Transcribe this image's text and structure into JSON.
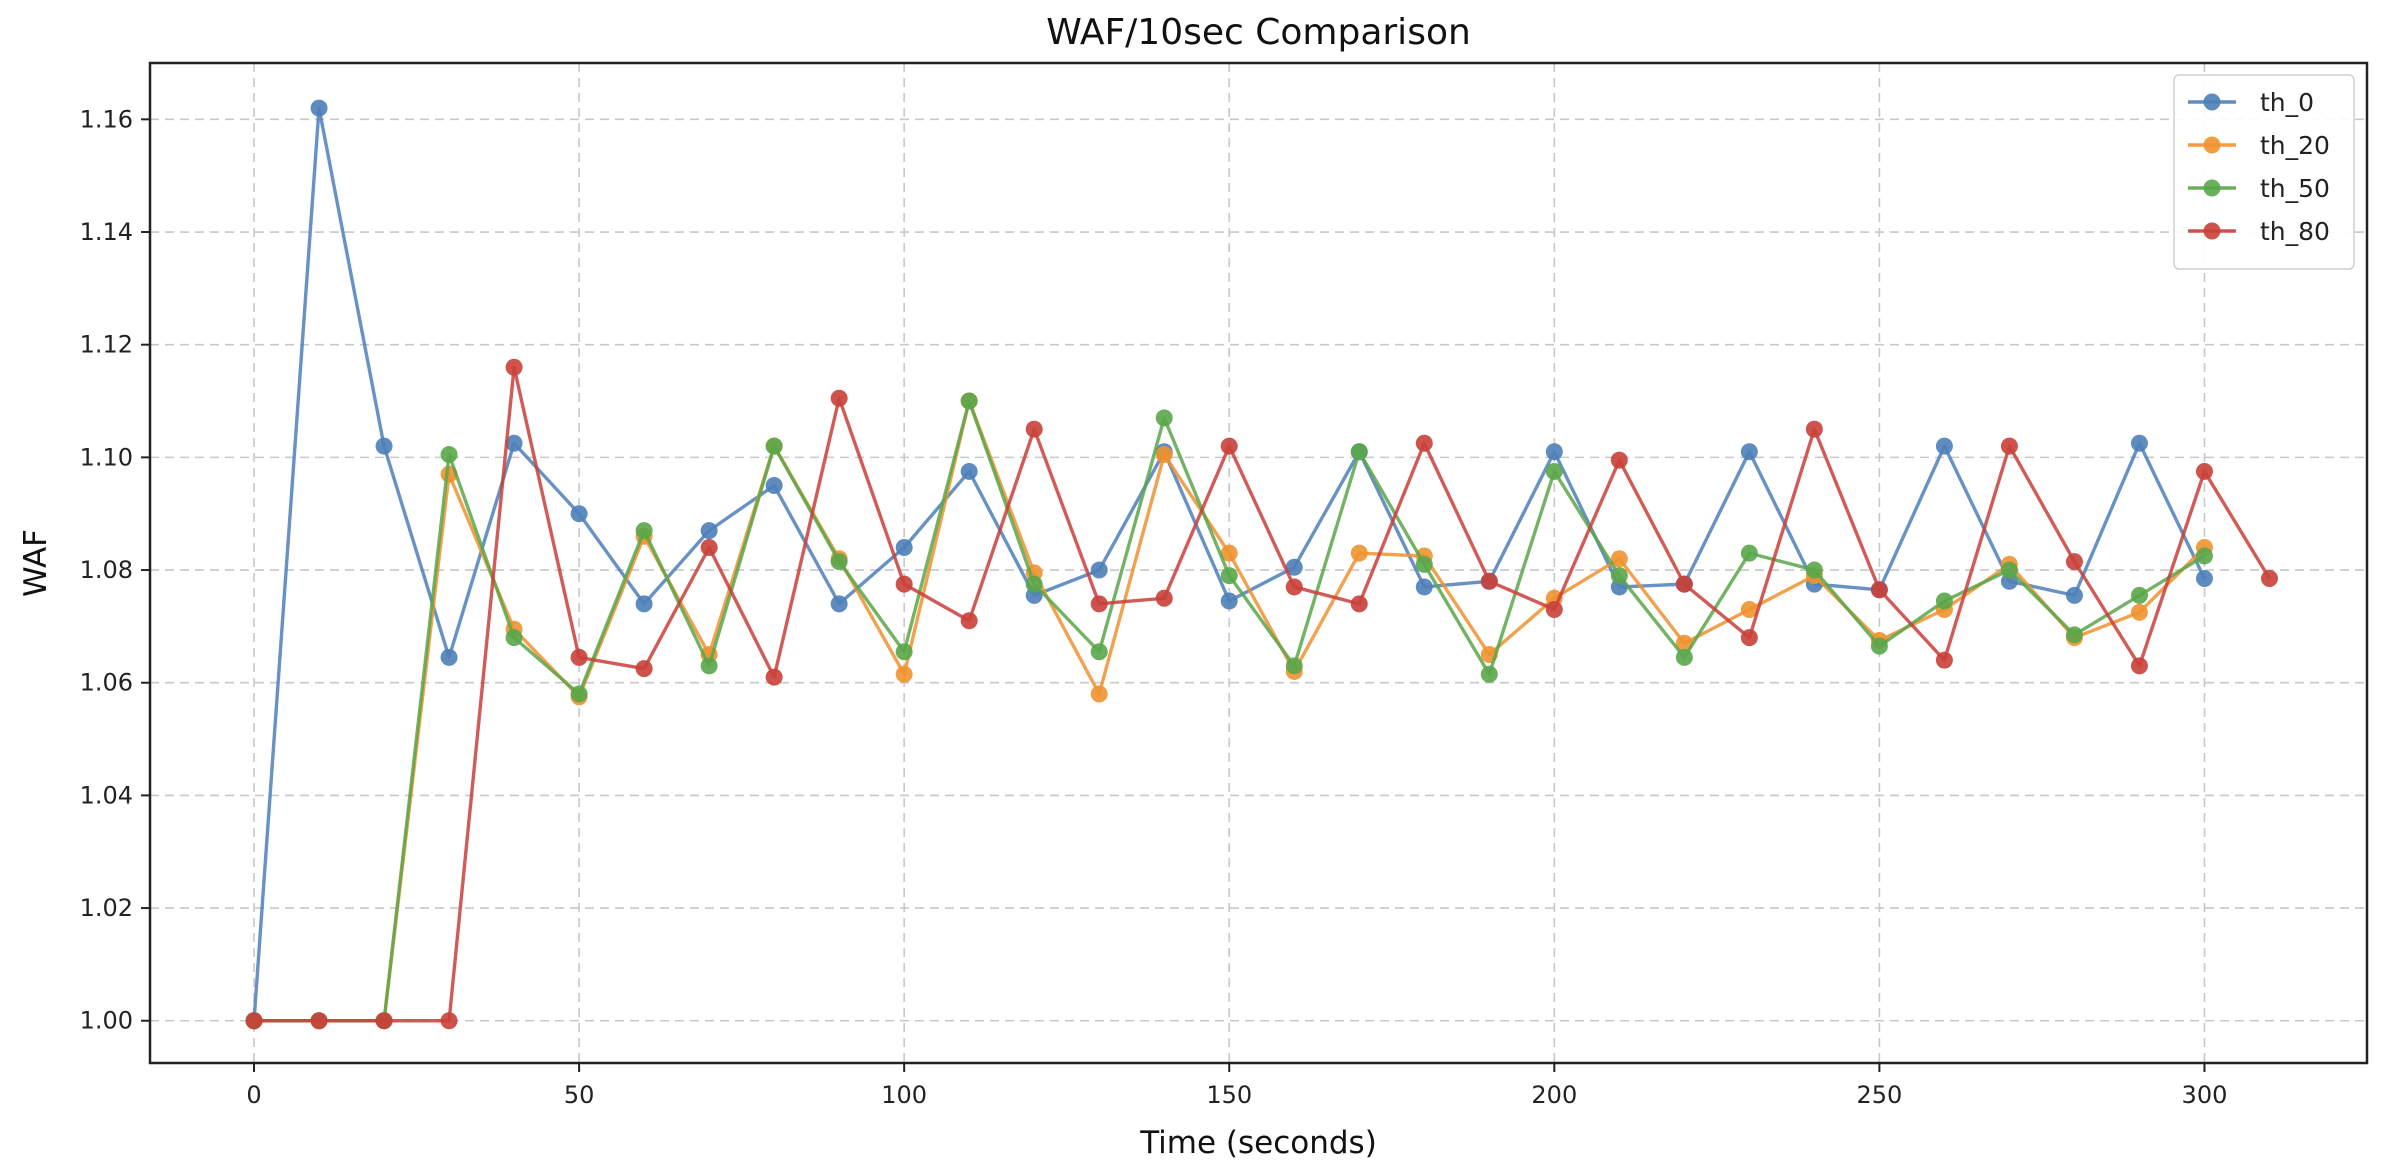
{
  "chart_data": {
    "type": "line",
    "title": "WAF/10sec Comparison",
    "xlabel": "Time (seconds)",
    "ylabel": "WAF",
    "xlim": [
      -16,
      325
    ],
    "ylim": [
      0.9925,
      1.17
    ],
    "xticks": [
      0,
      50,
      100,
      150,
      200,
      250,
      300
    ],
    "yticks": [
      1.0,
      1.02,
      1.04,
      1.06,
      1.08,
      1.1,
      1.12,
      1.14,
      1.16
    ],
    "grid": true,
    "legend_position": "top-right",
    "series": [
      {
        "name": "th_0",
        "color": "#4e7fb8",
        "x": [
          0,
          10,
          20,
          30,
          40,
          50,
          60,
          70,
          80,
          90,
          100,
          110,
          120,
          130,
          140,
          150,
          160,
          170,
          180,
          190,
          200,
          210,
          220,
          230,
          240,
          250,
          260,
          270,
          280,
          290,
          300
        ],
        "values": [
          1.0,
          1.162,
          1.102,
          1.0645,
          1.1025,
          1.09,
          1.074,
          1.087,
          1.095,
          1.074,
          1.084,
          1.0975,
          1.0755,
          1.08,
          1.101,
          1.0745,
          1.0805,
          1.101,
          1.077,
          1.078,
          1.101,
          1.077,
          1.0775,
          1.101,
          1.0775,
          1.0765,
          1.102,
          1.078,
          1.0755,
          1.1025,
          1.0785
        ]
      },
      {
        "name": "th_20",
        "color": "#f0922f",
        "x": [
          0,
          10,
          20,
          30,
          40,
          50,
          60,
          70,
          80,
          90,
          100,
          110,
          120,
          130,
          140,
          150,
          160,
          170,
          180,
          190,
          200,
          210,
          220,
          230,
          240,
          250,
          260,
          270,
          280,
          290,
          300
        ],
        "values": [
          1.0,
          1.0,
          1.0,
          1.097,
          1.0695,
          1.0575,
          1.086,
          1.065,
          1.102,
          1.082,
          1.0615,
          1.11,
          1.0795,
          1.058,
          1.1005,
          1.083,
          1.062,
          1.083,
          1.0825,
          1.065,
          1.075,
          1.082,
          1.067,
          1.073,
          1.079,
          1.0675,
          1.073,
          1.081,
          1.068,
          1.0725,
          1.084
        ]
      },
      {
        "name": "th_50",
        "color": "#5aa64a",
        "x": [
          0,
          10,
          20,
          30,
          40,
          50,
          60,
          70,
          80,
          90,
          100,
          110,
          120,
          130,
          140,
          150,
          160,
          170,
          180,
          190,
          200,
          210,
          220,
          230,
          240,
          250,
          260,
          270,
          280,
          290,
          300
        ],
        "values": [
          1.0,
          1.0,
          1.0,
          1.1005,
          1.068,
          1.058,
          1.087,
          1.063,
          1.102,
          1.0815,
          1.0655,
          1.11,
          1.0775,
          1.0655,
          1.107,
          1.079,
          1.063,
          1.101,
          1.081,
          1.0615,
          1.0975,
          1.079,
          1.0645,
          1.083,
          1.08,
          1.0665,
          1.0745,
          1.08,
          1.0685,
          1.0755,
          1.0825
        ]
      },
      {
        "name": "th_80",
        "color": "#c9403a",
        "x": [
          0,
          10,
          20,
          30,
          40,
          50,
          60,
          70,
          80,
          90,
          100,
          110,
          120,
          130,
          140,
          150,
          160,
          170,
          180,
          190,
          200,
          210,
          220,
          230,
          240,
          250,
          260,
          270,
          280,
          290,
          300,
          310
        ],
        "values": [
          1.0,
          1.0,
          1.0,
          1.0,
          1.116,
          1.0645,
          1.0625,
          1.084,
          1.061,
          1.1105,
          1.0775,
          1.071,
          1.105,
          1.074,
          1.075,
          1.102,
          1.077,
          1.074,
          1.1025,
          1.078,
          1.073,
          1.0995,
          1.0775,
          1.068,
          1.105,
          1.0765,
          1.064,
          1.102,
          1.0815,
          1.063,
          1.0975,
          1.0785
        ]
      }
    ]
  }
}
